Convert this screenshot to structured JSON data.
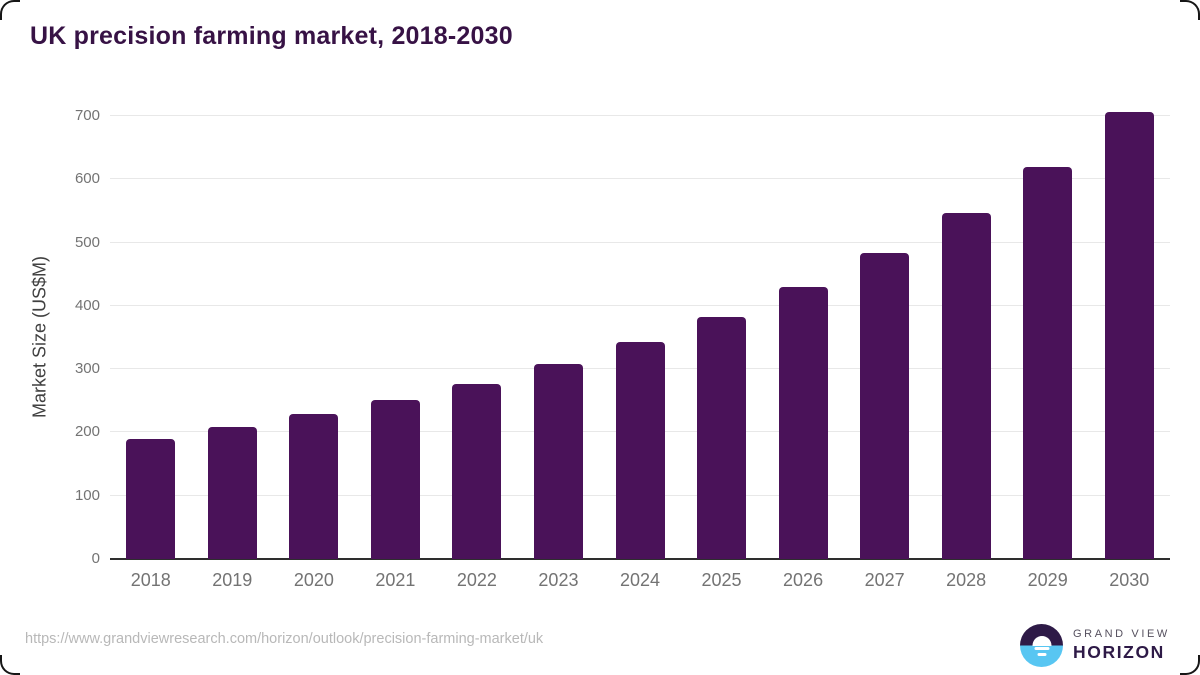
{
  "page": {
    "title": "UK precision farming market, 2018-2030"
  },
  "chart_data": {
    "type": "bar",
    "title": "UK precision farming market, 2018-2030",
    "categories": [
      "2018",
      "2019",
      "2020",
      "2021",
      "2022",
      "2023",
      "2024",
      "2025",
      "2026",
      "2027",
      "2028",
      "2029",
      "2030"
    ],
    "values": [
      190,
      209,
      229,
      252,
      277,
      308,
      343,
      382,
      430,
      483,
      547,
      620,
      706
    ],
    "xlabel": "",
    "ylabel": "Market Size (US$M)",
    "ylim": [
      0,
      700
    ],
    "yticks": [
      0,
      100,
      200,
      300,
      400,
      500,
      600,
      700
    ],
    "grid": "horizontal",
    "legend": "none"
  },
  "footer": {
    "source_url": "https://www.grandviewresearch.com/horizon/outlook/precision-farming-market/uk",
    "logo": {
      "top": "GRAND VIEW",
      "bottom": "HORIZON"
    }
  },
  "colors": {
    "bar": "#4a1259",
    "title_text": "#371245",
    "axis_line": "#2e2e2e",
    "gridline": "#e8e8e8",
    "tick_label": "#737373",
    "axis_title": "#404040",
    "source_text": "#b8b8b8",
    "logo_dark": "#2e1a47",
    "logo_blue": "#58c6f2",
    "logo_gray": "#55505e"
  }
}
